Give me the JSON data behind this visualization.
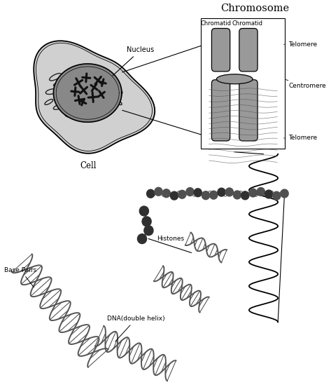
{
  "bg_color": "#ffffff",
  "cell_label": "Cell",
  "nucleus_label": "Nucleus",
  "chromosome_title": "Chromosome",
  "chromatid_label1": "Chromatid",
  "chromatid_label2": "Chromatid",
  "telomere_top_label": "Telomere",
  "centromere_label": "Centromere",
  "telomere_bot_label": "Telomere",
  "histones_label": "Histones",
  "base_pairs_label": "Base Pairs",
  "dna_label": "DNA(double helix)",
  "gray_cell": "#cccccc",
  "gray_nucleus": "#888888",
  "gray_chromosome": "#999999",
  "line_color": "#000000",
  "dark_gray": "#444444",
  "label_fontsize": 6.5,
  "title_fontsize": 10.5,
  "cell_fontsize": 8.5
}
